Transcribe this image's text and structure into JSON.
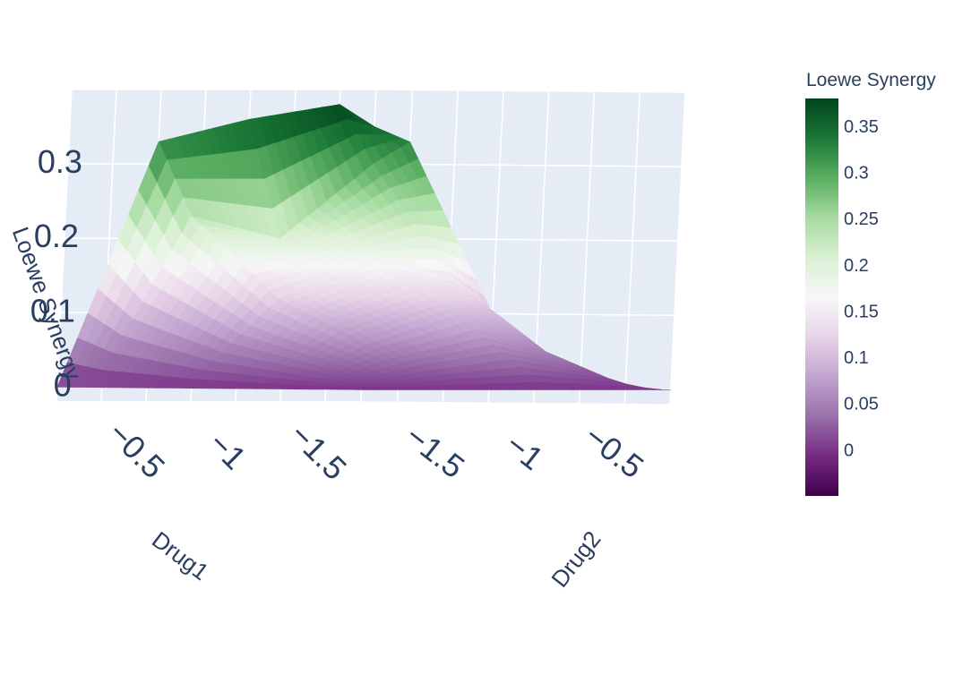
{
  "chart_data": {
    "type": "surface",
    "colorscale": "PRGn",
    "axes": {
      "x": {
        "title": "Drug1",
        "range": [
          -2,
          -0.3
        ],
        "ticks": [
          -1.5,
          -1,
          -0.5
        ],
        "tick_labels": [
          "−1.5",
          "−1",
          "−0.5"
        ]
      },
      "y": {
        "title": "Drug2",
        "range": [
          -2,
          -0.3
        ],
        "ticks": [
          -1.5,
          -1,
          -0.5
        ],
        "tick_labels": [
          "−1.5",
          "−1",
          "−0.5"
        ]
      },
      "z": {
        "title": "Loewe Synergy",
        "range": [
          -0.02,
          0.4
        ],
        "ticks": [
          0,
          0.1,
          0.2,
          0.3
        ],
        "tick_labels": [
          "0",
          "0.1",
          "0.2",
          "0.3"
        ]
      }
    },
    "x": [
      -2.0,
      -1.5,
      -1.0,
      -0.5,
      -0.3
    ],
    "y": [
      -2.0,
      -1.5,
      -1.0,
      -0.5,
      -0.3
    ],
    "z": [
      [
        0.0,
        0.0,
        0.0,
        0.0,
        0.0
      ],
      [
        0.0,
        0.06,
        0.12,
        0.23,
        0.33
      ],
      [
        0.0,
        0.1,
        0.17,
        0.2,
        0.36
      ],
      [
        0.0,
        0.05,
        0.14,
        0.3,
        0.38
      ],
      [
        0.0,
        0.0,
        0.1,
        0.33,
        0.35
      ]
    ],
    "colorbar": {
      "title": "Loewe Synergy",
      "range": [
        -0.05,
        0.38
      ],
      "ticks": [
        0,
        0.05,
        0.1,
        0.15,
        0.2,
        0.25,
        0.3,
        0.35
      ],
      "tick_labels": [
        "0",
        "0.05",
        "0.1",
        "0.15",
        "0.2",
        "0.25",
        "0.3",
        "0.35"
      ]
    }
  }
}
